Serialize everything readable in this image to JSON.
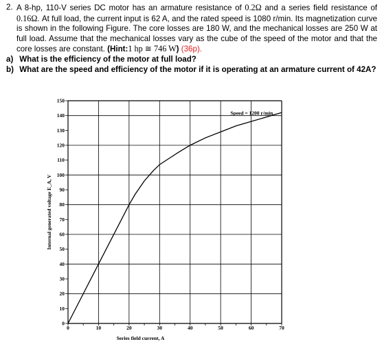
{
  "problem": {
    "number": "2.",
    "text_part1": "A 8-hp, 110-V series DC motor has an armature resistance of ",
    "ra": "0.2Ω",
    "text_part2": " and a series field resistance of ",
    "rs": "0.16Ω",
    "text_part3": ". At full load, the current input is 62 A, and the rated speed is 1080 r/min. Its magnetization curve is shown in the following Figure. The core losses are 180 W, and the mechanical losses are 250 W at full load. Assume that the mechanical losses vary as the cube of the speed of the motor and that the core losses are constant. ",
    "hint_label": "(Hint:",
    "hint_value": "1 hp ≅ 746 W",
    "hint_close": ")",
    "points": "(36p)."
  },
  "questions": [
    {
      "label": "a)",
      "text": "What is the efficiency of the motor at full load?"
    },
    {
      "label": "b)",
      "text": "What are the speed and efficiency of the  motor if it is operating at an armature current of 42A?"
    }
  ],
  "chart_data": {
    "type": "line",
    "xlabel": "Series field current, A",
    "ylabel": "Internal generated voltage E_A, V",
    "xlim": [
      0,
      70
    ],
    "ylim": [
      0,
      150
    ],
    "xticks": [
      0,
      10,
      20,
      30,
      40,
      50,
      60,
      70
    ],
    "yticks": [
      0,
      10,
      20,
      30,
      40,
      50,
      60,
      70,
      80,
      90,
      100,
      110,
      120,
      130,
      140,
      150
    ],
    "grid": true,
    "annotation": "Speed = 1200 r/min",
    "x": [
      0,
      10,
      20,
      22,
      25,
      28,
      30,
      33,
      36,
      40,
      45,
      50,
      55,
      60,
      65,
      70
    ],
    "y": [
      0,
      40,
      80,
      87,
      96,
      103,
      107,
      111,
      115,
      120,
      125,
      129,
      133,
      136,
      139,
      142
    ]
  }
}
